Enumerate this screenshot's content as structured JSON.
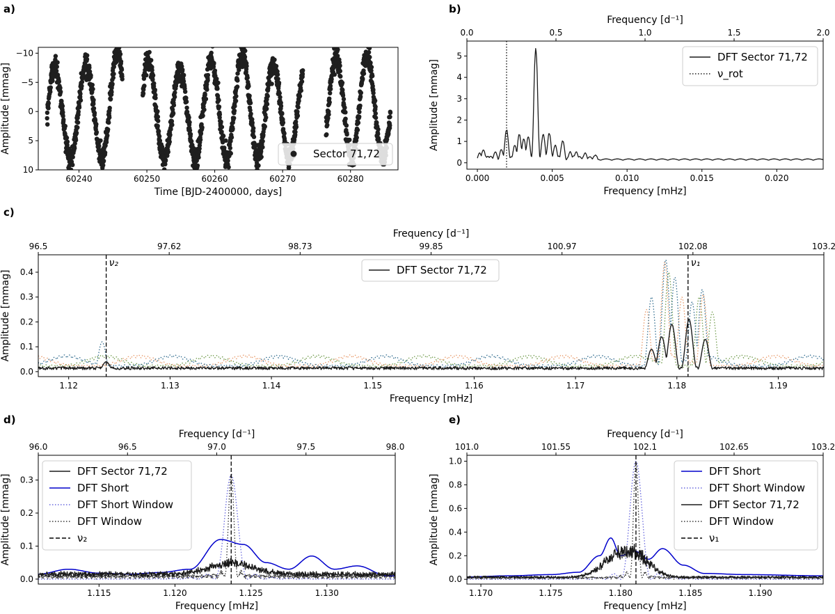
{
  "chart_data": [
    {
      "id": "a",
      "panel_label": "a)",
      "type": "scatter",
      "xlabel": "Time [BJD-2400000, days]",
      "ylabel": "Amplitude [mmag]",
      "xlim": [
        60234,
        60287
      ],
      "ylim": [
        10,
        -11
      ],
      "y_inverted": true,
      "xticks": [
        60240,
        60250,
        60260,
        60270,
        60280
      ],
      "yticks": [
        10,
        5,
        0,
        -5,
        -10
      ],
      "ytick_labels": [
        "10",
        "5",
        "0",
        "−5",
        "−10"
      ],
      "segments": [
        [
          60235.3,
          60246.4
        ],
        [
          60249.4,
          60273.0
        ],
        [
          60276.4,
          60285.9
        ]
      ],
      "amplitude_envelope": [
        -10.5,
        9.5
      ],
      "period_days": 4.6,
      "legend": {
        "placement": "lower right",
        "entries": [
          {
            "label": "Sector 71,72",
            "marker": "circle"
          }
        ]
      },
      "series": [
        {
          "name": "Sector 71,72",
          "color": "#1f1f1f"
        }
      ]
    },
    {
      "id": "b",
      "panel_label": "b)",
      "type": "line",
      "xlabel": "Frequency [mHz]",
      "top_xlabel": "Frequency [d⁻¹]",
      "ylabel": "Amplitude [mmag]",
      "xlim": [
        -0.0007,
        0.0231
      ],
      "ylim": [
        -0.3,
        5.7
      ],
      "xticks": [
        0.0,
        0.005,
        0.01,
        0.015,
        0.02
      ],
      "xtick_labels": [
        "0.000",
        "0.005",
        "0.010",
        "0.015",
        "0.020"
      ],
      "top_xticks": [
        0.0,
        0.5,
        1.0,
        1.5,
        2.0
      ],
      "top_xtick_labels": [
        "0.0",
        "0.5",
        "1.0",
        "1.5",
        "2.0"
      ],
      "top_xlim": [
        0.0,
        2.0
      ],
      "yticks": [
        0,
        1,
        2,
        3,
        4,
        5
      ],
      "legend": {
        "placement": "upper right",
        "entries": [
          {
            "label": "DFT Sector 71,72",
            "style": "solid"
          },
          {
            "label": "ν_rot",
            "style": "dotted"
          }
        ]
      },
      "vlines": [
        {
          "x": 0.00195,
          "style": "dotted",
          "label": "ν_rot"
        }
      ],
      "peaks": [
        {
          "x": 0.00015,
          "y": 0.45
        },
        {
          "x": 0.0004,
          "y": 0.6
        },
        {
          "x": 0.0007,
          "y": 0.3
        },
        {
          "x": 0.0012,
          "y": 0.5
        },
        {
          "x": 0.0016,
          "y": 0.6
        },
        {
          "x": 0.00195,
          "y": 1.5
        },
        {
          "x": 0.0025,
          "y": 0.8
        },
        {
          "x": 0.0028,
          "y": 1.3
        },
        {
          "x": 0.0031,
          "y": 1.1
        },
        {
          "x": 0.0034,
          "y": 1.2
        },
        {
          "x": 0.0039,
          "y": 5.3
        },
        {
          "x": 0.0044,
          "y": 1.3
        },
        {
          "x": 0.0048,
          "y": 1.35
        },
        {
          "x": 0.0052,
          "y": 0.8
        },
        {
          "x": 0.0057,
          "y": 1.0
        },
        {
          "x": 0.0062,
          "y": 0.5
        },
        {
          "x": 0.0066,
          "y": 0.5
        },
        {
          "x": 0.0072,
          "y": 0.45
        },
        {
          "x": 0.0079,
          "y": 0.35
        }
      ],
      "series": [
        {
          "name": "DFT Sector 71,72",
          "color": "#1a1a1a"
        }
      ]
    },
    {
      "id": "c",
      "panel_label": "c)",
      "type": "line",
      "xlabel": "Frequency [mHz]",
      "top_xlabel": "Frequency [d⁻¹]",
      "ylabel": "Amplitude [mmag]",
      "xlim": [
        1.117,
        1.1945
      ],
      "ylim": [
        -0.02,
        0.47
      ],
      "xticks": [
        1.12,
        1.13,
        1.14,
        1.15,
        1.16,
        1.17,
        1.18,
        1.19
      ],
      "xtick_labels": [
        "1.12",
        "1.13",
        "1.14",
        "1.15",
        "1.16",
        "1.17",
        "1.18",
        "1.19"
      ],
      "top_xtick_labels": [
        "96.5",
        "97.62",
        "98.73",
        "99.85",
        "100.97",
        "102.08",
        "103.2"
      ],
      "yticks": [
        0.0,
        0.1,
        0.2,
        0.3,
        0.4
      ],
      "ytick_labels": [
        "0.0",
        "0.1",
        "0.2",
        "0.3",
        "0.4"
      ],
      "legend": {
        "placement": "upper center",
        "entries": [
          {
            "label": "DFT Sector 71,72",
            "style": "solid"
          }
        ]
      },
      "vlines": [
        {
          "x": 1.1237,
          "style": "dashed",
          "label": "ν₂"
        },
        {
          "x": 1.1811,
          "style": "dashed",
          "label": "ν₁"
        }
      ],
      "series": [
        {
          "name": "DFT Sector 71,72",
          "color": "#1a1a1a",
          "style": "solid",
          "peaks": [
            {
              "x": 1.1237,
              "y": 0.04
            },
            {
              "x": 1.1785,
              "y": 0.14
            },
            {
              "x": 1.1795,
              "y": 0.19
            },
            {
              "x": 1.1812,
              "y": 0.21
            },
            {
              "x": 1.1828,
              "y": 0.13
            },
            {
              "x": 1.1775,
              "y": 0.09
            }
          ]
        },
        {
          "color": "#2f6b8e",
          "style": "dotted",
          "peaks": [
            {
              "x": 1.1233,
              "y": 0.12
            },
            {
              "x": 1.1789,
              "y": 0.45
            },
            {
              "x": 1.1798,
              "y": 0.38
            },
            {
              "x": 1.1825,
              "y": 0.33
            },
            {
              "x": 1.1815,
              "y": 0.28
            },
            {
              "x": 1.1775,
              "y": 0.3
            }
          ]
        },
        {
          "color": "#e89a6a",
          "style": "dotted",
          "peaks": [
            {
              "x": 1.1788,
              "y": 0.44
            },
            {
              "x": 1.1805,
              "y": 0.3
            },
            {
              "x": 1.1826,
              "y": 0.31
            },
            {
              "x": 1.177,
              "y": 0.25
            }
          ]
        },
        {
          "color": "#6f9a4a",
          "style": "dotted",
          "peaks": [
            {
              "x": 1.1792,
              "y": 0.4
            },
            {
              "x": 1.1822,
              "y": 0.3
            },
            {
              "x": 1.1835,
              "y": 0.24
            }
          ]
        }
      ]
    },
    {
      "id": "d",
      "panel_label": "d)",
      "type": "line",
      "xlabel": "Frequency [mHz]",
      "top_xlabel": "Frequency [d⁻¹]",
      "ylabel": "Amplitude [mmag]",
      "xlim": [
        1.111,
        1.1345
      ],
      "ylim": [
        -0.015,
        0.375
      ],
      "xticks": [
        1.115,
        1.12,
        1.125,
        1.13
      ],
      "xtick_labels": [
        "1.115",
        "1.120",
        "1.125",
        "1.130"
      ],
      "top_xlim": [
        96.0,
        98.0
      ],
      "top_xticks": [
        96.0,
        96.5,
        97.0,
        97.5,
        98.0
      ],
      "top_xtick_labels": [
        "96.0",
        "96.5",
        "97.0",
        "97.5",
        "98.0"
      ],
      "yticks": [
        0.0,
        0.1,
        0.2,
        0.3
      ],
      "ytick_labels": [
        "0.0",
        "0.1",
        "0.2",
        "0.3"
      ],
      "legend": {
        "placement": "upper left",
        "entries": [
          {
            "label": "DFT Sector 71,72",
            "style": "solid",
            "color": "#1a1a1a"
          },
          {
            "label": "DFT Short",
            "style": "solid",
            "color": "#0000cc"
          },
          {
            "label": "DFT Short Window",
            "style": "dotted",
            "color": "#6666dd"
          },
          {
            "label": "DFT Window",
            "style": "dotted",
            "color": "#333333"
          },
          {
            "label": "ν₂",
            "style": "dashed",
            "color": "#000000"
          }
        ]
      },
      "vlines": [
        {
          "x": 1.1237,
          "style": "dashed",
          "label": "ν₂"
        }
      ],
      "series": [
        {
          "name": "DFT Sector 71,72",
          "color": "#1a1a1a",
          "style": "solid",
          "peaks": [
            {
              "x": 1.1237,
              "y": 0.045
            }
          ]
        },
        {
          "name": "DFT Short",
          "color": "#0000cc",
          "style": "solid",
          "points": [
            [
              1.111,
              0.015
            ],
            [
              1.113,
              0.03
            ],
            [
              1.115,
              0.018
            ],
            [
              1.117,
              0.015
            ],
            [
              1.119,
              0.02
            ],
            [
              1.121,
              0.03
            ],
            [
              1.123,
              0.12
            ],
            [
              1.1245,
              0.105
            ],
            [
              1.126,
              0.05
            ],
            [
              1.1275,
              0.03
            ],
            [
              1.129,
              0.07
            ],
            [
              1.1305,
              0.03
            ],
            [
              1.132,
              0.04
            ],
            [
              1.134,
              0.01
            ]
          ]
        },
        {
          "name": "DFT Short Window",
          "color": "#6666dd",
          "style": "dotted",
          "peaks": [
            {
              "x": 1.1237,
              "y": 0.315
            }
          ]
        },
        {
          "name": "DFT Window",
          "color": "#333333",
          "style": "dotted",
          "peaks": [
            {
              "x": 1.1237,
              "y": 0.31
            }
          ]
        }
      ]
    },
    {
      "id": "e",
      "panel_label": "e)",
      "type": "line",
      "xlabel": "Frequency [mHz]",
      "top_xlabel": "Frequency [d⁻¹]",
      "ylabel": "Amplitude [mmag]",
      "xlim": [
        1.169,
        1.1945
      ],
      "ylim": [
        -0.04,
        1.05
      ],
      "xticks": [
        1.17,
        1.175,
        1.18,
        1.185,
        1.19
      ],
      "xtick_labels": [
        "1.170",
        "1.175",
        "1.180",
        "1.185",
        "1.190"
      ],
      "top_xlim": [
        101.0,
        103.2
      ],
      "top_xticks": [
        101.0,
        101.55,
        102.1,
        102.65,
        103.2
      ],
      "top_xtick_labels": [
        "101.0",
        "101.55",
        "102.1",
        "102.65",
        "103.2"
      ],
      "yticks": [
        0.0,
        0.2,
        0.4,
        0.6,
        0.8,
        1.0
      ],
      "ytick_labels": [
        "0.0",
        "0.2",
        "0.4",
        "0.6",
        "0.8",
        "1.0"
      ],
      "legend": {
        "placement": "upper right",
        "entries": [
          {
            "label": "DFT Short",
            "style": "solid",
            "color": "#0000cc"
          },
          {
            "label": "DFT Short Window",
            "style": "dotted",
            "color": "#6666dd"
          },
          {
            "label": "DFT Sector 71,72",
            "style": "solid",
            "color": "#1a1a1a"
          },
          {
            "label": "DFT Window",
            "style": "dotted",
            "color": "#333333"
          },
          {
            "label": "ν₁",
            "style": "dashed",
            "color": "#000000"
          }
        ]
      },
      "vlines": [
        {
          "x": 1.1811,
          "style": "dashed",
          "label": "ν₁"
        }
      ],
      "series": [
        {
          "name": "DFT Short",
          "color": "#0000cc",
          "style": "solid",
          "points": [
            [
              1.169,
              0.02
            ],
            [
              1.172,
              0.03
            ],
            [
              1.175,
              0.04
            ],
            [
              1.177,
              0.06
            ],
            [
              1.1785,
              0.2
            ],
            [
              1.1793,
              0.35
            ],
            [
              1.18,
              0.2
            ],
            [
              1.181,
              0.24
            ],
            [
              1.182,
              0.17
            ],
            [
              1.183,
              0.26
            ],
            [
              1.1845,
              0.12
            ],
            [
              1.186,
              0.05
            ],
            [
              1.189,
              0.04
            ],
            [
              1.1945,
              0.03
            ]
          ]
        },
        {
          "name": "DFT Short Window",
          "color": "#6666dd",
          "style": "dotted",
          "peaks": [
            {
              "x": 1.1811,
              "y": 1.0
            }
          ]
        },
        {
          "name": "DFT Sector 71,72",
          "color": "#1a1a1a",
          "style": "solid",
          "peaks": [
            {
              "x": 1.1811,
              "y": 0.22
            },
            {
              "x": 1.1795,
              "y": 0.17
            }
          ]
        },
        {
          "name": "DFT Window",
          "color": "#333333",
          "style": "dotted",
          "peaks": [
            {
              "x": 1.1811,
              "y": 0.98
            }
          ]
        }
      ]
    }
  ]
}
